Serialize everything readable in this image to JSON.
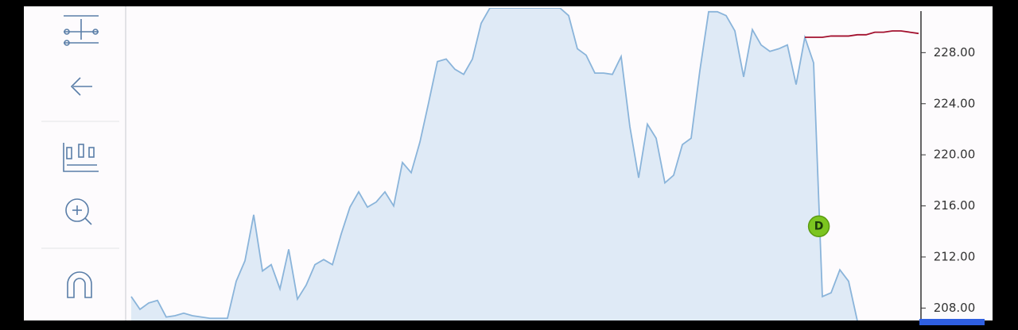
{
  "chart_data": {
    "type": "area",
    "series": [
      {
        "color": "#8ab4da",
        "fill": "#dfeaf6",
        "values": [
          208.9,
          207.9,
          208.4,
          208.6,
          207.3,
          207.4,
          207.6,
          207.4,
          207.3,
          207.2,
          207.2,
          207.2,
          210.1,
          211.7,
          215.3,
          210.9,
          211.4,
          209.5,
          212.6,
          208.7,
          209.8,
          211.4,
          211.8,
          211.4,
          213.8,
          215.9,
          217.1,
          215.9,
          216.3,
          217.1,
          216.0,
          219.4,
          218.6,
          221.0,
          224.1,
          227.3,
          227.5,
          226.7,
          226.3,
          227.5,
          230.3,
          231.5,
          231.5,
          231.5,
          231.5,
          231.5,
          231.5,
          231.5,
          231.5,
          231.5,
          230.9,
          228.3,
          227.8,
          226.4,
          226.4,
          226.3,
          227.7,
          222.2,
          218.2,
          222.4,
          221.3,
          217.8,
          218.4,
          220.8,
          221.3,
          226.6,
          231.2,
          231.2,
          230.9,
          229.7,
          226.1,
          229.8,
          228.6,
          228.1,
          228.3,
          228.6,
          225.5,
          229.2,
          227.2,
          208.9,
          209.2,
          211.0,
          210.1,
          207.0,
          null,
          null,
          null,
          null,
          null,
          null,
          null
        ]
      },
      {
        "color": "#a3112e",
        "values": [
          null,
          null,
          null,
          null,
          null,
          null,
          null,
          null,
          null,
          null,
          null,
          null,
          null,
          null,
          null,
          null,
          null,
          null,
          null,
          null,
          null,
          null,
          null,
          null,
          null,
          null,
          null,
          null,
          null,
          null,
          null,
          null,
          null,
          null,
          null,
          null,
          null,
          null,
          null,
          null,
          null,
          null,
          null,
          null,
          null,
          null,
          null,
          null,
          null,
          null,
          null,
          null,
          null,
          null,
          null,
          null,
          null,
          null,
          null,
          null,
          null,
          null,
          null,
          null,
          null,
          null,
          null,
          null,
          null,
          null,
          null,
          null,
          null,
          null,
          null,
          null,
          null,
          229.2,
          229.2,
          229.2,
          229.3,
          229.3,
          229.3,
          229.4,
          229.4,
          229.6,
          229.6,
          229.7,
          229.7,
          229.6,
          229.5
        ]
      }
    ],
    "annotations": [
      {
        "text": "D",
        "x": 78.6,
        "y": 214.4,
        "color": "#7cc520"
      }
    ],
    "ylim": [
      206.9,
      231.5
    ],
    "yticks": [
      {
        "value": 208,
        "label": "208.00"
      },
      {
        "value": 212,
        "label": "212.00"
      },
      {
        "value": 216,
        "label": "216.00"
      },
      {
        "value": 220,
        "label": "220.00"
      },
      {
        "value": 224,
        "label": "224.00"
      },
      {
        "value": 228,
        "label": "228.00"
      }
    ]
  }
}
